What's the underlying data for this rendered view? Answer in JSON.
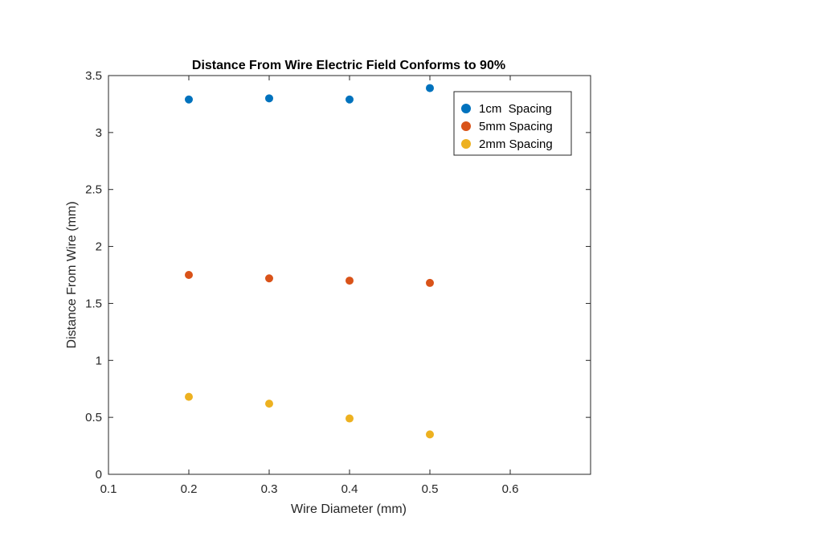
{
  "chart_data": {
    "type": "scatter",
    "title": "Distance From Wire Electric Field Conforms to 90%",
    "xlabel": "Wire Diameter (mm)",
    "ylabel": "Distance From Wire (mm)",
    "xlim": [
      0.1,
      0.7
    ],
    "ylim": [
      0,
      3.5
    ],
    "xticks": [
      0.1,
      0.2,
      0.3,
      0.4,
      0.5,
      0.6
    ],
    "xtick_labels": [
      "0.1",
      "0.2",
      "0.3",
      "0.4",
      "0.5",
      "0.6"
    ],
    "yticks": [
      0,
      0.5,
      1,
      1.5,
      2,
      2.5,
      3,
      3.5
    ],
    "ytick_labels": [
      "0",
      "0.5",
      "1",
      "1.5",
      "2",
      "2.5",
      "3",
      "3.5"
    ],
    "grid": false,
    "legend_position": "top-right",
    "series": [
      {
        "name": "1cm  Spacing",
        "color": "#0072BD",
        "x": [
          0.2,
          0.3,
          0.4,
          0.5
        ],
        "y": [
          3.29,
          3.3,
          3.29,
          3.39
        ]
      },
      {
        "name": "5mm Spacing",
        "color": "#D95319",
        "x": [
          0.2,
          0.3,
          0.4,
          0.5
        ],
        "y": [
          1.75,
          1.72,
          1.7,
          1.68
        ]
      },
      {
        "name": "2mm Spacing",
        "color": "#EDB120",
        "x": [
          0.2,
          0.3,
          0.4,
          0.5
        ],
        "y": [
          0.68,
          0.62,
          0.49,
          0.35
        ]
      }
    ]
  }
}
